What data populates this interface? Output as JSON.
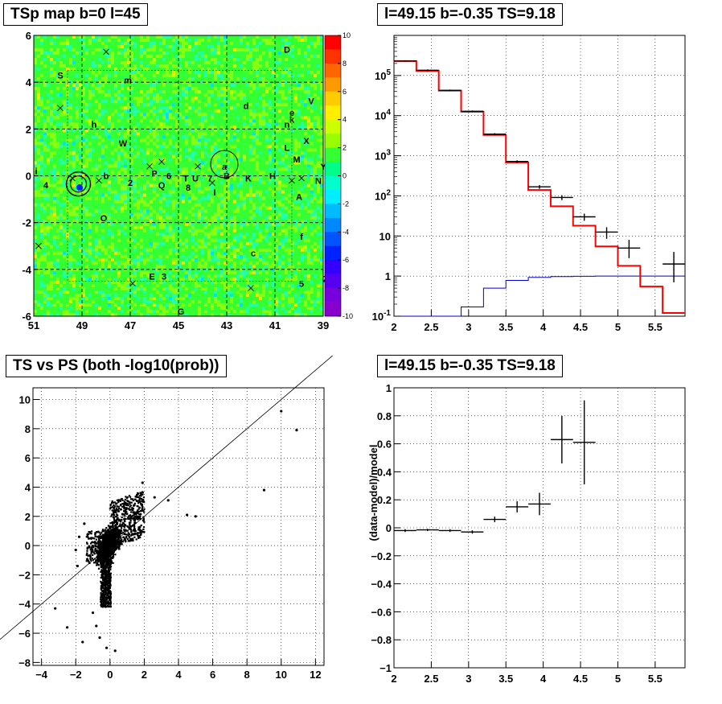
{
  "panels": {
    "tsmap": {
      "title": "TSp map b=0 l=45"
    },
    "spectrum": {
      "title": "l=49.15 b=-0.35 TS=9.18"
    },
    "scatter": {
      "title": "TS vs PS (both -log10(prob))"
    },
    "residual": {
      "title": "l=49.15 b=-0.35 TS=9.18",
      "ylabel": "(data-model)/model"
    }
  },
  "chart_data": [
    {
      "type": "heatmap",
      "title": "TSp map b=0 l=45",
      "x_ticks": [
        "51",
        "49",
        "47",
        "45",
        "43",
        "41",
        "39"
      ],
      "y_ticks": [
        "6",
        "4",
        "2",
        "0",
        "-2",
        "-4",
        "-6"
      ],
      "xlim": [
        51,
        39
      ],
      "ylim": [
        -6,
        6
      ],
      "color_scale": {
        "min": -10,
        "max": 10,
        "ticks": [
          "10",
          "8",
          "6",
          "4",
          "2",
          "0",
          "-2",
          "-4",
          "-6",
          "-8",
          "-10"
        ]
      },
      "source_labels": [
        {
          "t": "S",
          "l": 49.9,
          "b": 4.3
        },
        {
          "t": "m",
          "l": 47.1,
          "b": 4.1
        },
        {
          "t": "D",
          "l": 40.5,
          "b": 5.4
        },
        {
          "t": "d",
          "l": 42.2,
          "b": 3.0
        },
        {
          "t": "V",
          "l": 39.5,
          "b": 3.2
        },
        {
          "t": "e",
          "l": 40.3,
          "b": 2.7
        },
        {
          "t": "k",
          "l": 40.3,
          "b": 2.4
        },
        {
          "t": "n",
          "l": 40.5,
          "b": 2.2
        },
        {
          "t": "h",
          "l": 48.5,
          "b": 2.2
        },
        {
          "t": "W",
          "l": 47.3,
          "b": 1.4
        },
        {
          "t": "X",
          "l": 39.7,
          "b": 1.5
        },
        {
          "t": "L",
          "l": 40.5,
          "b": 1.2
        },
        {
          "t": "M",
          "l": 40.1,
          "b": 0.7
        },
        {
          "t": "Y",
          "l": 39.0,
          "b": 0.4
        },
        {
          "t": "i",
          "l": 50.9,
          "b": 0.2
        },
        {
          "t": "P",
          "l": 46.0,
          "b": 0.1
        },
        {
          "t": "6",
          "l": 45.4,
          "b": 0.0
        },
        {
          "t": "a",
          "l": 43.1,
          "b": 0.4
        },
        {
          "t": "B",
          "l": 43.0,
          "b": 0.0
        },
        {
          "t": "T",
          "l": 44.7,
          "b": -0.1
        },
        {
          "t": "U",
          "l": 44.3,
          "b": -0.1
        },
        {
          "t": "7",
          "l": 43.7,
          "b": -0.1
        },
        {
          "t": "K",
          "l": 42.1,
          "b": -0.1
        },
        {
          "t": "H",
          "l": 41.1,
          "b": 0.0
        },
        {
          "t": "N",
          "l": 39.2,
          "b": -0.2
        },
        {
          "t": "4",
          "l": 50.5,
          "b": -0.4
        },
        {
          "t": "2",
          "l": 47.0,
          "b": -0.3
        },
        {
          "t": "Q",
          "l": 45.7,
          "b": -0.4
        },
        {
          "t": "8",
          "l": 44.6,
          "b": -0.5
        },
        {
          "t": "I",
          "l": 43.5,
          "b": -0.7
        },
        {
          "t": "b",
          "l": 48.0,
          "b": 0.0
        },
        {
          "t": "O",
          "l": 48.1,
          "b": -1.8
        },
        {
          "t": "A",
          "l": 40.0,
          "b": -0.9
        },
        {
          "t": "f",
          "l": 39.9,
          "b": -2.6
        },
        {
          "t": "c",
          "l": 41.9,
          "b": -3.3
        },
        {
          "t": "E",
          "l": 46.1,
          "b": -4.3
        },
        {
          "t": "3",
          "l": 45.6,
          "b": -4.3
        },
        {
          "t": "5",
          "l": 39.9,
          "b": -4.6
        },
        {
          "t": "Z",
          "l": 38.9,
          "b": -4.4
        },
        {
          "t": "G",
          "l": 44.9,
          "b": -5.8
        }
      ]
    },
    {
      "type": "line",
      "title": "l=49.15 b=-0.35 TS=9.18",
      "xlim": [
        2,
        5.9
      ],
      "ylim": [
        0.1,
        1000000
      ],
      "ylog": true,
      "x_ticks": [
        "2",
        "2.5",
        "3",
        "3.5",
        "4",
        "4.5",
        "5",
        "5.5"
      ],
      "y_ticks": [
        "10^-1",
        "1",
        "10",
        "10^2",
        "10^3",
        "10^4",
        "10^5"
      ],
      "model_bins": {
        "edges": [
          2,
          2.3,
          2.6,
          2.9,
          3.2,
          3.5,
          3.8,
          4.1,
          4.4,
          4.7,
          5.0,
          5.3,
          5.6,
          5.9
        ],
        "values": [
          230000,
          130000,
          42000,
          12500,
          3300,
          680,
          140,
          55,
          18,
          5.5,
          1.8,
          0.55,
          0.12
        ]
      },
      "background_bins": {
        "edges": [
          2,
          2.3,
          2.6,
          2.9,
          3.2,
          3.5,
          3.8,
          4.1,
          4.4,
          4.7,
          5.0,
          5.3,
          5.6,
          5.9
        ],
        "values": [
          0.001,
          0.01,
          0.05,
          0.17,
          0.5,
          0.78,
          0.93,
          0.97,
          0.99,
          1.0,
          1.0,
          1.0,
          1.0
        ]
      },
      "data_points": [
        {
          "x": 2.15,
          "y": 230000,
          "xerr": 0.15,
          "ylo": 220000,
          "yhi": 240000
        },
        {
          "x": 2.45,
          "y": 135000,
          "xerr": 0.15,
          "ylo": 128000,
          "yhi": 142000
        },
        {
          "x": 2.75,
          "y": 42500,
          "xerr": 0.15,
          "ylo": 40500,
          "yhi": 44500
        },
        {
          "x": 3.05,
          "y": 12800,
          "xerr": 0.15,
          "ylo": 12200,
          "yhi": 13400
        },
        {
          "x": 3.35,
          "y": 3450,
          "xerr": 0.15,
          "ylo": 3250,
          "yhi": 3650
        },
        {
          "x": 3.65,
          "y": 720,
          "xerr": 0.15,
          "ylo": 670,
          "yhi": 770
        },
        {
          "x": 3.95,
          "y": 168,
          "xerr": 0.15,
          "ylo": 150,
          "yhi": 186
        },
        {
          "x": 4.25,
          "y": 91,
          "xerr": 0.15,
          "ylo": 78,
          "yhi": 104
        },
        {
          "x": 4.55,
          "y": 30,
          "xerr": 0.15,
          "ylo": 24,
          "yhi": 36
        },
        {
          "x": 4.85,
          "y": 12.5,
          "xerr": 0.15,
          "ylo": 8.5,
          "yhi": 16.5
        },
        {
          "x": 5.15,
          "y": 5,
          "xerr": 0.15,
          "ylo": 2.8,
          "yhi": 8
        },
        {
          "x": 5.75,
          "y": 2,
          "xerr": 0.15,
          "ylo": 0.7,
          "yhi": 4
        }
      ]
    },
    {
      "type": "scatter",
      "title": "TS vs PS (both -log10(prob))",
      "xlim": [
        -4.5,
        12.5
      ],
      "ylim": [
        -8.2,
        10.8
      ],
      "x_ticks": [
        "-4",
        "-2",
        "0",
        "2",
        "4",
        "6",
        "8",
        "10",
        "12"
      ],
      "y_ticks": [
        "-8",
        "-6",
        "-4",
        "-2",
        "0",
        "2",
        "4",
        "6",
        "8",
        "10"
      ],
      "reference_line": {
        "slope": 1,
        "intercept": 0
      },
      "outliers": [
        {
          "x": -2.5,
          "y": -5.6
        },
        {
          "x": -1.6,
          "y": -6.6
        },
        {
          "x": -0.6,
          "y": -6.3
        },
        {
          "x": -3.2,
          "y": -4.3
        },
        {
          "x": -2.0,
          "y": -0.3
        },
        {
          "x": -1.9,
          "y": -1.4
        },
        {
          "x": -1.5,
          "y": 1.5
        },
        {
          "x": -1.8,
          "y": 0.6
        },
        {
          "x": 1.9,
          "y": 4.3
        },
        {
          "x": 2.6,
          "y": 3.3
        },
        {
          "x": 3.4,
          "y": 3.1
        },
        {
          "x": 4.5,
          "y": 2.1
        },
        {
          "x": 5.0,
          "y": 2.0
        },
        {
          "x": 9.0,
          "y": 3.8
        },
        {
          "x": 10.0,
          "y": 9.2
        },
        {
          "x": 10.9,
          "y": 7.9
        },
        {
          "x": 0.3,
          "y": -7.2
        },
        {
          "x": -0.2,
          "y": -7.0
        },
        {
          "x": -1.0,
          "y": -4.6
        },
        {
          "x": -0.8,
          "y": -5.5
        }
      ]
    },
    {
      "type": "scatter",
      "title": "l=49.15 b=-0.35 TS=9.18",
      "ylabel": "(data-model)/model",
      "xlim": [
        2,
        5.9
      ],
      "ylim": [
        -1,
        1
      ],
      "x_ticks": [
        "2",
        "2.5",
        "3",
        "3.5",
        "4",
        "4.5",
        "5",
        "5.5"
      ],
      "y_ticks": [
        "1",
        "0.8",
        "0.6",
        "0.4",
        "0.2",
        "0",
        "-0.2",
        "-0.4",
        "-0.6",
        "-0.8",
        "-1"
      ],
      "points": [
        {
          "x": 2.15,
          "y": -0.02,
          "xerr": 0.15,
          "yerr": 0.01
        },
        {
          "x": 2.45,
          "y": -0.015,
          "xerr": 0.15,
          "yerr": 0.008
        },
        {
          "x": 2.75,
          "y": -0.02,
          "xerr": 0.15,
          "yerr": 0.01
        },
        {
          "x": 3.05,
          "y": -0.03,
          "xerr": 0.15,
          "yerr": 0.012
        },
        {
          "x": 3.35,
          "y": 0.06,
          "xerr": 0.15,
          "yerr": 0.02
        },
        {
          "x": 3.65,
          "y": 0.15,
          "xerr": 0.15,
          "yerr": 0.04
        },
        {
          "x": 3.95,
          "y": 0.17,
          "xerr": 0.15,
          "yerr": 0.08
        },
        {
          "x": 4.25,
          "y": 0.63,
          "xerr": 0.15,
          "yerr": 0.17
        },
        {
          "x": 4.55,
          "y": 0.61,
          "xerr": 0.15,
          "yerr": 0.3
        }
      ]
    }
  ]
}
